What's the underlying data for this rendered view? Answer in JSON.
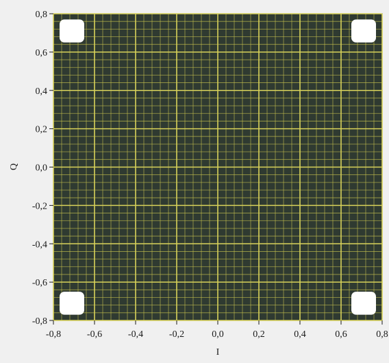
{
  "colors": {
    "page_background": "#f0f0f0",
    "plot_background": "#2f3a31",
    "major_grid": "#d8d25a",
    "minor_grid": "#c7c24e",
    "marker": "#ffffff",
    "text": "#1a1a1a"
  },
  "chart_data": {
    "type": "scatter",
    "title": "",
    "xlabel": "I",
    "ylabel": "Q",
    "xlim": [
      -0.8,
      0.8
    ],
    "ylim": [
      -0.8,
      0.8
    ],
    "x_ticks": [
      "-0,8",
      "-0,6",
      "-0,4",
      "-0,2",
      "0,0",
      "0,2",
      "0,4",
      "0,6",
      "0,8"
    ],
    "y_ticks": [
      "0,8",
      "0,6",
      "0,4",
      "0,2",
      "0,0",
      "-0,2",
      "-0,4",
      "-0,6",
      "-0,8"
    ],
    "x_tick_values": [
      -0.8,
      -0.6,
      -0.4,
      -0.2,
      0.0,
      0.2,
      0.4,
      0.6,
      0.8
    ],
    "y_tick_values": [
      0.8,
      0.6,
      0.4,
      0.2,
      0.0,
      -0.2,
      -0.4,
      -0.6,
      -0.8
    ],
    "grid": true,
    "minor_grid_divisions": 5,
    "legend": "none",
    "series": [
      {
        "points": [
          {
            "x": -0.71,
            "y": 0.71
          },
          {
            "x": 0.71,
            "y": 0.71
          },
          {
            "x": -0.71,
            "y": -0.71
          },
          {
            "x": 0.71,
            "y": -0.71
          }
        ]
      }
    ],
    "symbol_size": 0.12
  }
}
